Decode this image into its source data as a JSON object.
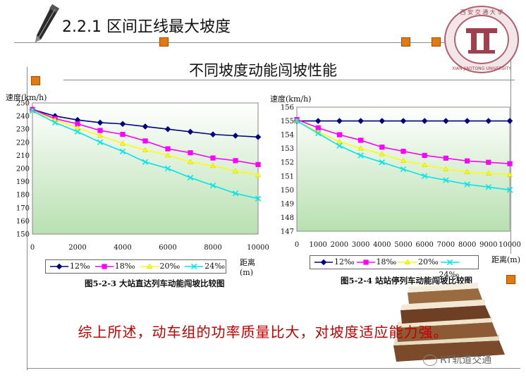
{
  "slide": {
    "title": "2.2.1 区间正线最大坡度",
    "subtitle": "不同坡度动能闯坡性能",
    "summary": "综上所述，动车组的功率质量比大，对坡度适应能力强。",
    "watermark": "RT轨道交通"
  },
  "colors": {
    "accent": "#e07b14",
    "summary_text": "#c00000",
    "plot_bg_top": "#ffffff",
    "plot_bg_bottom": "#b8e0b0"
  },
  "legend_labels": [
    "12‰",
    "18‰",
    "20‰",
    "24‰"
  ],
  "chart_data": [
    {
      "type": "line",
      "title": "",
      "caption": "图5-2-3  大站直达列车动能闯坡比较图",
      "ylabel": "速度(km/h)",
      "xlabel": "距离(m)",
      "ylim": [
        150,
        250
      ],
      "xlim": [
        0,
        10000
      ],
      "yticks": [
        150,
        160,
        170,
        180,
        190,
        200,
        210,
        220,
        230,
        240,
        250
      ],
      "xticks": [
        0,
        2000,
        4000,
        6000,
        8000,
        10000
      ],
      "x": [
        0,
        1000,
        2000,
        3000,
        4000,
        5000,
        6000,
        7000,
        8000,
        9000,
        10000
      ],
      "legend": "bottom",
      "grid": false,
      "series": [
        {
          "name": "12‰",
          "color": "#000080",
          "marker": "diamond",
          "values": [
            245,
            240,
            237,
            235,
            234,
            232,
            230,
            228,
            226,
            225,
            224
          ]
        },
        {
          "name": "18‰",
          "color": "#ff00ff",
          "marker": "square",
          "values": [
            245,
            238,
            234,
            229,
            226,
            221,
            215,
            212,
            208,
            206,
            203
          ]
        },
        {
          "name": "20‰",
          "color": "#ffff00",
          "marker": "triangle",
          "values": [
            244,
            237,
            231,
            225,
            219,
            214,
            210,
            205,
            202,
            198,
            195
          ]
        },
        {
          "name": "24‰",
          "color": "#00e5e5",
          "marker": "x",
          "values": [
            244,
            235,
            228,
            220,
            213,
            205,
            200,
            193,
            187,
            181,
            177
          ]
        }
      ]
    },
    {
      "type": "line",
      "title": "",
      "caption": "图5-2-4  站站停列车动能闯坡比较图",
      "ylabel": "速度(km/h)",
      "xlabel": "距离(m)",
      "ylim": [
        147,
        156
      ],
      "xlim": [
        0,
        10000
      ],
      "yticks": [
        147,
        148,
        149,
        150,
        151,
        152,
        153,
        154,
        155,
        156
      ],
      "xticks": [
        0,
        1000,
        2000,
        3000,
        4000,
        5000,
        6000,
        7000,
        8000,
        9000,
        10000
      ],
      "x": [
        0,
        1000,
        2000,
        3000,
        4000,
        5000,
        6000,
        7000,
        8000,
        9000,
        10000
      ],
      "legend": "bottom",
      "grid": false,
      "series": [
        {
          "name": "12‰",
          "color": "#000080",
          "marker": "diamond",
          "values": [
            155,
            155,
            155,
            155,
            155,
            155,
            155,
            155,
            155,
            155,
            155
          ]
        },
        {
          "name": "18‰",
          "color": "#ff00ff",
          "marker": "square",
          "values": [
            155.1,
            154.5,
            154.0,
            153.6,
            153.1,
            152.8,
            152.5,
            152.3,
            152.1,
            152.0,
            151.9
          ]
        },
        {
          "name": "20‰",
          "color": "#ffff00",
          "marker": "triangle",
          "values": [
            155.0,
            154.2,
            153.5,
            153.0,
            152.6,
            152.1,
            151.8,
            151.5,
            151.3,
            151.2,
            151.1
          ]
        },
        {
          "name": "24‰",
          "color": "#00e5e5",
          "marker": "x",
          "values": [
            155.0,
            154.1,
            153.2,
            152.5,
            152.0,
            151.5,
            151.0,
            150.7,
            150.4,
            150.2,
            150.0
          ]
        }
      ]
    }
  ]
}
